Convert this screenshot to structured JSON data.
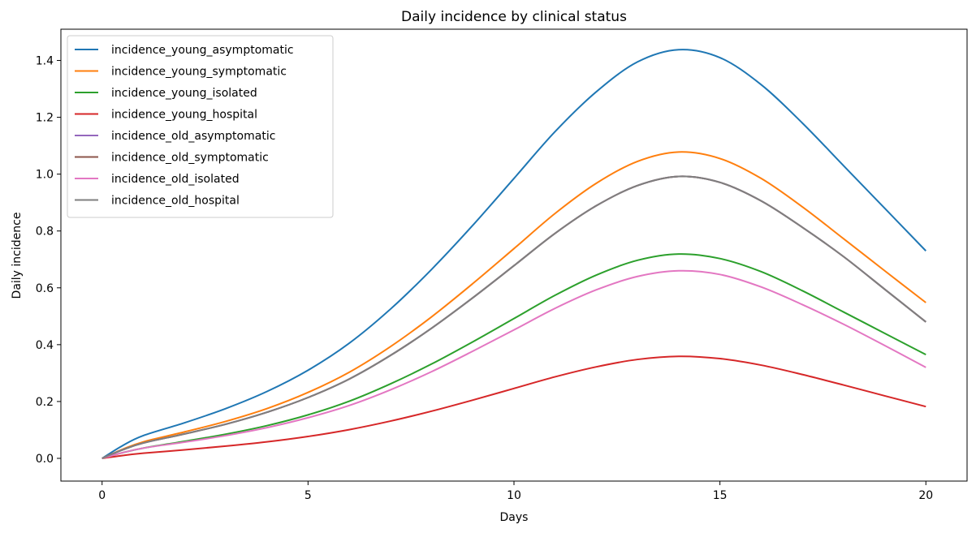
{
  "chart_data": {
    "type": "line",
    "title": "Daily incidence by clinical status",
    "xlabel": "Days",
    "ylabel": "Daily incidence",
    "xlim": [
      -1,
      21
    ],
    "ylim": [
      -0.08,
      1.51
    ],
    "xticks": [
      0,
      5,
      10,
      15,
      20
    ],
    "xtick_labels": [
      "0",
      "5",
      "10",
      "15",
      "20"
    ],
    "yticks": [
      0.0,
      0.2,
      0.4,
      0.6,
      0.8,
      1.0,
      1.2,
      1.4
    ],
    "ytick_labels": [
      "0.0",
      "0.2",
      "0.4",
      "0.6",
      "0.8",
      "1.0",
      "1.2",
      "1.4"
    ],
    "grid": false,
    "legend_position": "top-left",
    "x": [
      0,
      0.5,
      1,
      2,
      3,
      4,
      5,
      6,
      7,
      8,
      9,
      10,
      11,
      12,
      13,
      14,
      15,
      16,
      17,
      18,
      19,
      20
    ],
    "series": [
      {
        "name": "incidence_young_asymptomatic",
        "color": "#1f77b4",
        "values": [
          0,
          0.045,
          0.08,
          0.125,
          0.175,
          0.235,
          0.31,
          0.405,
          0.525,
          0.665,
          0.82,
          0.985,
          1.15,
          1.29,
          1.395,
          1.438,
          1.41,
          1.315,
          1.18,
          1.03,
          0.88,
          0.73
        ]
      },
      {
        "name": "incidence_young_symptomatic",
        "color": "#ff7f0e",
        "values": [
          0,
          0.032,
          0.058,
          0.093,
          0.13,
          0.175,
          0.232,
          0.303,
          0.393,
          0.498,
          0.615,
          0.738,
          0.862,
          0.968,
          1.045,
          1.078,
          1.055,
          0.985,
          0.885,
          0.773,
          0.66,
          0.548
        ]
      },
      {
        "name": "incidence_young_isolated",
        "color": "#2ca02c",
        "values": [
          0,
          0.02,
          0.036,
          0.06,
          0.085,
          0.115,
          0.153,
          0.201,
          0.262,
          0.332,
          0.41,
          0.492,
          0.574,
          0.645,
          0.697,
          0.719,
          0.703,
          0.657,
          0.59,
          0.515,
          0.44,
          0.365
        ]
      },
      {
        "name": "incidence_young_hospital",
        "color": "#d62728",
        "values": [
          0,
          0.01,
          0.018,
          0.03,
          0.043,
          0.058,
          0.077,
          0.101,
          0.131,
          0.166,
          0.205,
          0.246,
          0.287,
          0.322,
          0.348,
          0.359,
          0.351,
          0.328,
          0.295,
          0.258,
          0.22,
          0.182
        ]
      },
      {
        "name": "incidence_old_asymptomatic",
        "color": "#9467bd",
        "values": [
          0,
          0.03,
          0.054,
          0.086,
          0.12,
          0.162,
          0.214,
          0.279,
          0.362,
          0.458,
          0.565,
          0.678,
          0.792,
          0.889,
          0.96,
          0.992,
          0.971,
          0.906,
          0.813,
          0.71,
          0.595,
          0.48
        ]
      },
      {
        "name": "incidence_old_symptomatic",
        "color": "#8c564b",
        "values": [
          0,
          0.03,
          0.054,
          0.086,
          0.12,
          0.162,
          0.214,
          0.279,
          0.362,
          0.458,
          0.565,
          0.678,
          0.792,
          0.889,
          0.96,
          0.992,
          0.971,
          0.906,
          0.813,
          0.71,
          0.595,
          0.48
        ]
      },
      {
        "name": "incidence_old_isolated",
        "color": "#e377c2",
        "values": [
          0,
          0.02,
          0.036,
          0.057,
          0.08,
          0.108,
          0.143,
          0.186,
          0.241,
          0.305,
          0.377,
          0.452,
          0.528,
          0.593,
          0.64,
          0.66,
          0.647,
          0.603,
          0.541,
          0.472,
          0.397,
          0.32
        ]
      },
      {
        "name": "incidence_old_hospital",
        "color": "#7f7f7f",
        "values": [
          0,
          0.03,
          0.054,
          0.086,
          0.12,
          0.162,
          0.214,
          0.279,
          0.362,
          0.458,
          0.565,
          0.678,
          0.792,
          0.889,
          0.96,
          0.992,
          0.971,
          0.906,
          0.813,
          0.71,
          0.595,
          0.48
        ]
      }
    ]
  }
}
